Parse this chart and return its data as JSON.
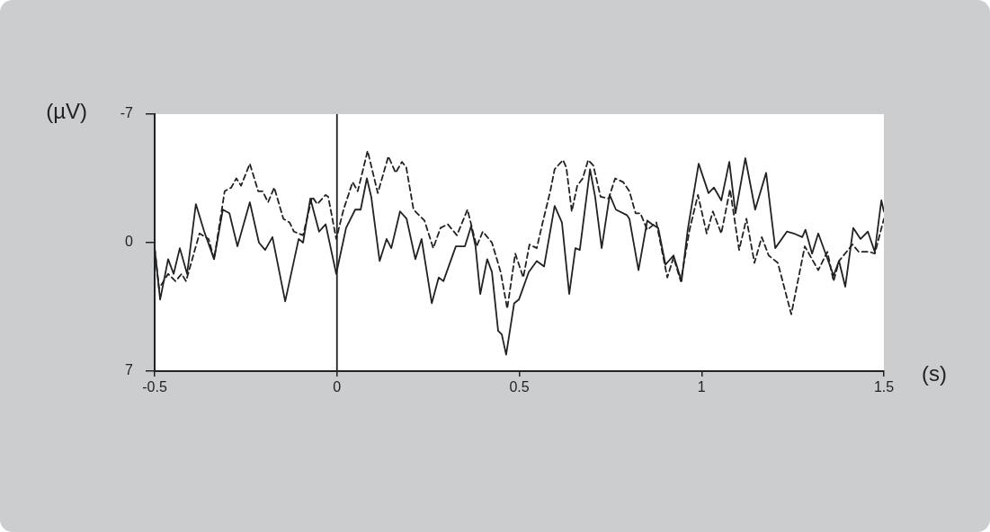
{
  "chart_data": {
    "type": "line",
    "xlabel": "(s)",
    "ylabel": "(µV)",
    "xlim": [
      -0.5,
      1.5
    ],
    "xticks": [
      -0.5,
      0,
      0.5,
      1,
      1.5
    ],
    "ylim": [
      7,
      -7
    ],
    "yticks": [
      -7,
      0,
      7
    ],
    "grid": false,
    "legend": false,
    "marker": "none",
    "ref_lines": [
      {
        "axis": "x",
        "value": 0,
        "color": "#222222"
      }
    ],
    "series": [
      {
        "color": "#222222",
        "line_style": "solid",
        "x": [
          -0.5,
          -0.485,
          -0.463,
          -0.448,
          -0.431,
          -0.411,
          -0.387,
          -0.364,
          -0.337,
          -0.313,
          -0.295,
          -0.273,
          -0.239,
          -0.214,
          -0.197,
          -0.177,
          -0.142,
          -0.105,
          -0.093,
          -0.073,
          -0.049,
          -0.031,
          -0.002,
          0.025,
          0.05,
          0.065,
          0.082,
          0.094,
          0.117,
          0.136,
          0.149,
          0.173,
          0.191,
          0.215,
          0.232,
          0.26,
          0.279,
          0.292,
          0.326,
          0.351,
          0.368,
          0.38,
          0.393,
          0.412,
          0.425,
          0.442,
          0.452,
          0.464,
          0.486,
          0.499,
          0.526,
          0.548,
          0.568,
          0.597,
          0.617,
          0.637,
          0.654,
          0.666,
          0.694,
          0.708,
          0.726,
          0.748,
          0.765,
          0.795,
          0.802,
          0.827,
          0.851,
          0.864,
          0.881,
          0.901,
          0.923,
          0.945,
          0.962,
          0.992,
          1.019,
          1.034,
          1.054,
          1.076,
          1.093,
          1.12,
          1.147,
          1.177,
          1.202,
          1.234,
          1.253,
          1.276,
          1.285,
          1.303,
          1.32,
          1.362,
          1.377,
          1.394,
          1.416,
          1.436,
          1.456,
          1.475,
          1.493,
          1.5
        ],
        "values": [
          0.3,
          3.1,
          0.9,
          1.7,
          0.3,
          1.7,
          -2.1,
          -0.6,
          0.9,
          -1.8,
          -1.6,
          0.2,
          -2.2,
          0,
          0.4,
          -0.3,
          3.2,
          -0.2,
          0,
          -2.4,
          -0.6,
          -1,
          1.7,
          -0.8,
          -1.8,
          -1.8,
          -3.5,
          -2.5,
          1,
          -0.2,
          0.3,
          -1.7,
          -1.3,
          0.9,
          -0.2,
          3.3,
          1.9,
          2.1,
          0.2,
          0.2,
          -0.9,
          0.2,
          2.8,
          0.9,
          1.6,
          4.8,
          5,
          6.1,
          3.3,
          3.1,
          1.6,
          1,
          1.3,
          -2,
          -1.1,
          2.8,
          0.3,
          0.4,
          -4,
          -2.5,
          0.3,
          -2.6,
          -1.8,
          -1.5,
          -1.3,
          1.5,
          -1.2,
          -1,
          -0.8,
          1.2,
          0.7,
          2.1,
          -0.7,
          -4.3,
          -2.7,
          -3,
          -2.3,
          -4.4,
          -1.6,
          -4.6,
          -1.8,
          -3.8,
          0.3,
          -0.6,
          -0.5,
          -0.3,
          -0.7,
          0.6,
          -0.5,
          1.8,
          1,
          2.4,
          -0.8,
          -0.2,
          -0.6,
          0.5,
          -2.3,
          -1.7
        ]
      },
      {
        "color": "#222222",
        "line_style": "dashed",
        "x": [
          -0.5,
          -0.488,
          -0.463,
          -0.443,
          -0.426,
          -0.414,
          -0.377,
          -0.352,
          -0.337,
          -0.308,
          -0.29,
          -0.276,
          -0.263,
          -0.239,
          -0.216,
          -0.204,
          -0.189,
          -0.172,
          -0.147,
          -0.13,
          -0.118,
          -0.093,
          -0.068,
          -0.054,
          -0.031,
          -0.024,
          -0.002,
          0.018,
          0.043,
          0.057,
          0.084,
          0.112,
          0.141,
          0.161,
          0.178,
          0.19,
          0.21,
          0.24,
          0.264,
          0.284,
          0.304,
          0.329,
          0.358,
          0.383,
          0.4,
          0.425,
          0.449,
          0.467,
          0.489,
          0.511,
          0.528,
          0.548,
          0.563,
          0.585,
          0.597,
          0.62,
          0.629,
          0.644,
          0.659,
          0.674,
          0.689,
          0.703,
          0.723,
          0.745,
          0.763,
          0.785,
          0.802,
          0.819,
          0.832,
          0.851,
          0.876,
          0.906,
          0.923,
          0.943,
          0.967,
          0.99,
          1.014,
          1.031,
          1.054,
          1.078,
          1.103,
          1.123,
          1.145,
          1.165,
          1.184,
          1.209,
          1.246,
          1.283,
          1.32,
          1.345,
          1.362,
          1.377,
          1.414,
          1.431,
          1.461,
          1.475,
          1.5
        ],
        "values": [
          0.3,
          2.5,
          1.7,
          2.1,
          1.7,
          2.1,
          -0.5,
          -0.2,
          0.9,
          -2.8,
          -3,
          -3.5,
          -3.1,
          -4.3,
          -2.8,
          -2.8,
          -2.2,
          -3,
          -1.3,
          -1.1,
          -0.6,
          -0.4,
          -2.5,
          -2.1,
          -2.6,
          -2.5,
          -0.2,
          -1.8,
          -3.3,
          -2.8,
          -5,
          -2.7,
          -4.7,
          -3.8,
          -4.4,
          -4.1,
          -1.8,
          -1.2,
          0.3,
          -0.8,
          -1,
          -0.4,
          -1.8,
          0.2,
          -0.6,
          0,
          1.6,
          3.6,
          0.6,
          1.9,
          0.1,
          0.3,
          -1,
          -2.8,
          -4,
          -4.5,
          -4.1,
          -1.7,
          -3.1,
          -3.5,
          -4.5,
          -4.2,
          -2.5,
          -2.4,
          -3.5,
          -3.3,
          -2.8,
          -1.6,
          -1.6,
          -0.7,
          -1.1,
          1.9,
          0.8,
          2.1,
          -0.7,
          -2.6,
          -0.5,
          -1.7,
          -0.5,
          -2.9,
          0.4,
          -1.3,
          1.1,
          -0.3,
          0.7,
          1.1,
          3.9,
          0.2,
          1.5,
          0.5,
          2.1,
          1,
          0.1,
          0.5,
          0.5,
          0.6,
          -1.3
        ]
      }
    ]
  }
}
